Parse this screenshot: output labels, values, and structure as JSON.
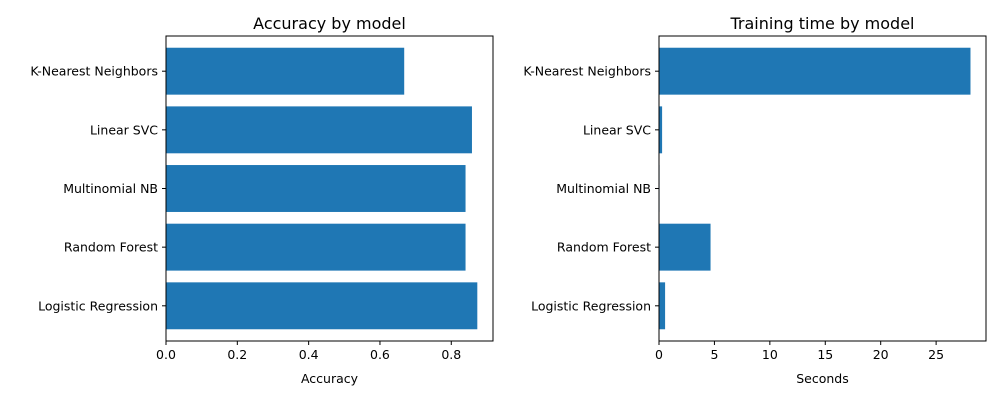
{
  "colors": {
    "bar": "#1f77b4",
    "axis": "#000000",
    "background": "#ffffff"
  },
  "chart_data": [
    {
      "type": "bar",
      "orientation": "horizontal",
      "title": "Accuracy by model",
      "xlabel": "Accuracy",
      "ylabel": "",
      "categories": [
        "Logistic Regression",
        "Random Forest",
        "Multinomial NB",
        "Linear SVC",
        "K-Nearest Neighbors"
      ],
      "values": [
        0.873,
        0.84,
        0.84,
        0.858,
        0.668
      ],
      "xlim": [
        0,
        0.917
      ],
      "xticks": [
        0.0,
        0.2,
        0.4,
        0.6,
        0.8
      ],
      "xtick_labels": [
        "0.0",
        "0.2",
        "0.4",
        "0.6",
        "0.8"
      ],
      "grid": false,
      "legend": "none"
    },
    {
      "type": "bar",
      "orientation": "horizontal",
      "title": "Training time by model",
      "xlabel": "Seconds",
      "ylabel": "",
      "categories": [
        "Logistic Regression",
        "Random Forest",
        "Multinomial NB",
        "Linear SVC",
        "K-Nearest Neighbors"
      ],
      "values": [
        0.55,
        4.65,
        0.05,
        0.28,
        28.1
      ],
      "xlim": [
        0,
        29.5
      ],
      "xticks": [
        0,
        5,
        10,
        15,
        20,
        25
      ],
      "xtick_labels": [
        "0",
        "5",
        "10",
        "15",
        "20",
        "25"
      ],
      "grid": false,
      "legend": "none"
    }
  ]
}
